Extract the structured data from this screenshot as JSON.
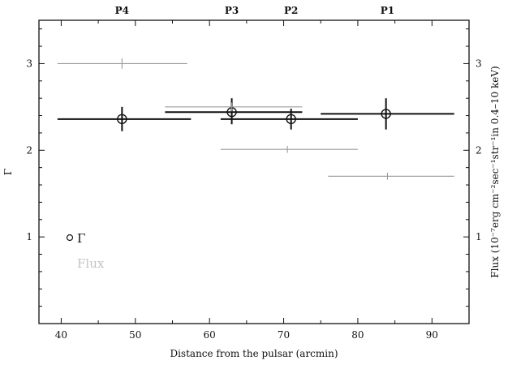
{
  "chart_data": {
    "type": "scatter",
    "xlabel": "Distance from the pulsar (arcmin)",
    "ylabel": "Γ",
    "y2label": "Flux (10⁻⁷erg cm⁻²sec⁻¹str⁻¹in 0.4–10 keV)",
    "xlim": [
      37,
      95
    ],
    "ylim": [
      0,
      3.5
    ],
    "y2lim": [
      0,
      3.5
    ],
    "x_ticks": [
      40,
      50,
      60,
      70,
      80,
      90
    ],
    "y_ticks": [
      1,
      2,
      3
    ],
    "y2_ticks": [
      1,
      2,
      3
    ],
    "grid": false,
    "regions": [
      {
        "label": "P4",
        "x": 48.2
      },
      {
        "label": "P3",
        "x": 63
      },
      {
        "label": "P2",
        "x": 71
      },
      {
        "label": "P1",
        "x": 84
      }
    ],
    "series": [
      {
        "name": "Γ",
        "color": "#111111",
        "marker": "open-circle",
        "points": [
          {
            "x": 48.2,
            "y": 2.36,
            "xerr": [
              39.5,
              57.5
            ],
            "yerr": [
              2.22,
              2.5
            ]
          },
          {
            "x": 63.0,
            "y": 2.44,
            "xerr": [
              54.0,
              72.5
            ],
            "yerr": [
              2.3,
              2.6
            ]
          },
          {
            "x": 71.0,
            "y": 2.36,
            "xerr": [
              61.5,
              80.0
            ],
            "yerr": [
              2.24,
              2.48
            ]
          },
          {
            "x": 83.8,
            "y": 2.42,
            "xerr": [
              75.0,
              93.0
            ],
            "yerr": [
              2.24,
              2.6
            ]
          }
        ]
      },
      {
        "name": "Flux",
        "color": "#9a9a9a",
        "marker": "none",
        "points": [
          {
            "x": 48.2,
            "y": 3.0,
            "xerr": [
              39.5,
              57.0
            ],
            "yerr": [
              2.94,
              3.06
            ]
          },
          {
            "x": 63.0,
            "y": 2.5,
            "xerr": [
              54.0,
              72.5
            ],
            "yerr": [
              2.45,
              2.55
            ]
          },
          {
            "x": 70.5,
            "y": 2.01,
            "xerr": [
              61.5,
              80.0
            ],
            "yerr": [
              1.97,
              2.05
            ]
          },
          {
            "x": 84.0,
            "y": 1.7,
            "xerr": [
              76.0,
              93.0
            ],
            "yerr": [
              1.66,
              1.74
            ]
          }
        ]
      }
    ],
    "legend": {
      "position": "bottom-left",
      "entries": [
        {
          "label": "Γ",
          "marker": "open-circle"
        },
        {
          "label": "Flux",
          "marker": "none"
        }
      ]
    }
  }
}
